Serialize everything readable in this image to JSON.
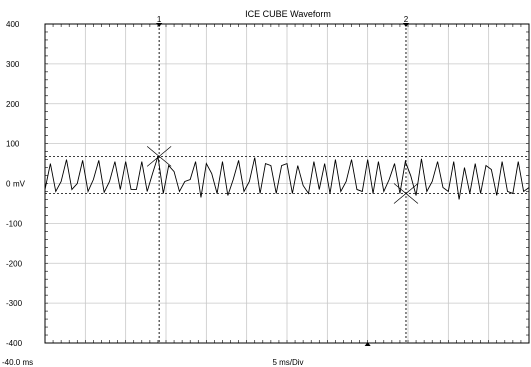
{
  "chart_data": {
    "type": "line",
    "title": "ICE CUBE Waveform",
    "x_start_label": "-40.0 ms",
    "x_scale_label": "5 ms/Div",
    "y_unit": "mV",
    "ylim": [
      -400,
      400
    ],
    "y_ticks": [
      400,
      300,
      200,
      100,
      0,
      -100,
      -200,
      -300,
      -400
    ],
    "y_tick_labels": [
      "400",
      "300",
      "200",
      "100",
      "0",
      "-100",
      "-200",
      "-300",
      "-400"
    ],
    "x_divisions": 12,
    "grid": true,
    "cursors": [
      {
        "label": "1",
        "time_div": 2.83,
        "value": 68
      },
      {
        "label": "2",
        "time_div": 8.95,
        "value": -25
      }
    ],
    "reference_levels": [
      68,
      -25
    ],
    "trigger_marker_div": 8.0,
    "values": [
      -15,
      50,
      -20,
      5,
      60,
      -15,
      0,
      58,
      -20,
      10,
      58,
      -22,
      5,
      55,
      -15,
      55,
      -15,
      -15,
      55,
      -20,
      25,
      68,
      -25,
      45,
      30,
      -20,
      5,
      10,
      55,
      -35,
      50,
      25,
      -25,
      55,
      -30,
      10,
      58,
      -20,
      5,
      65,
      -25,
      50,
      45,
      -25,
      45,
      50,
      -25,
      45,
      -5,
      -25,
      55,
      -15,
      50,
      -25,
      60,
      -20,
      5,
      60,
      -15,
      -20,
      60,
      -25,
      55,
      -20,
      10,
      50,
      -25,
      55,
      20,
      -30,
      62,
      -20,
      5,
      55,
      -10,
      -20,
      55,
      -40,
      40,
      -25,
      50,
      -25,
      45,
      35,
      -30,
      55,
      -20,
      -25,
      55,
      -20,
      -10
    ]
  }
}
